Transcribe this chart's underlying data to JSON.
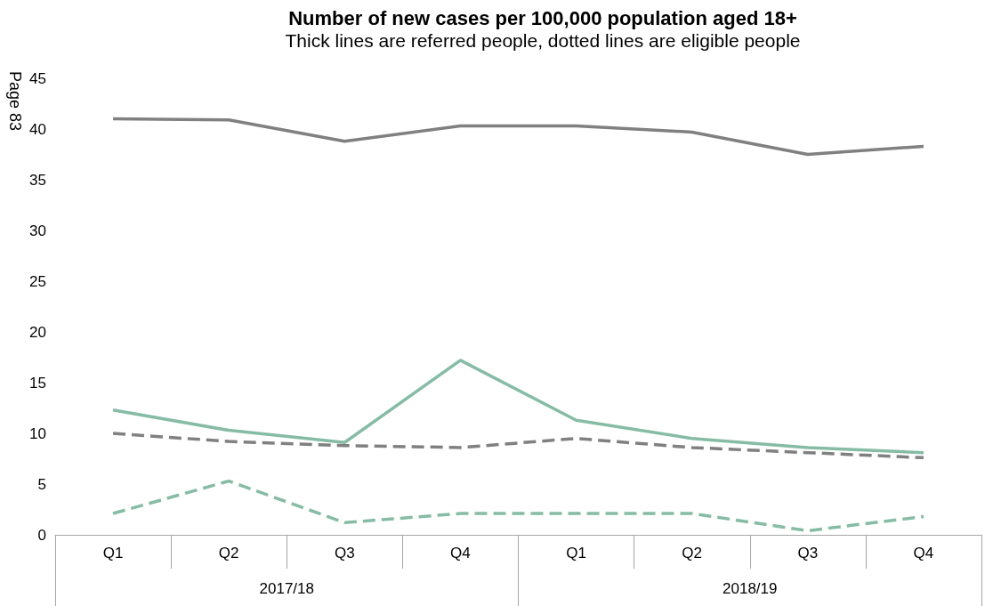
{
  "chart_data": {
    "type": "line",
    "title": "Number of new cases per 100,000 population aged 18+",
    "subtitle": "Thick lines are referred people, dotted lines are eligible people",
    "categories": [
      "Q1",
      "Q2",
      "Q3",
      "Q4",
      "Q1",
      "Q2",
      "Q3",
      "Q4"
    ],
    "series": [
      {
        "color": "#808080",
        "line_style": "solid",
        "values": [
          41.0,
          40.9,
          38.8,
          40.3,
          40.3,
          39.7,
          37.5,
          38.3
        ]
      },
      {
        "color": "#86bca5",
        "line_style": "solid",
        "values": [
          12.3,
          10.3,
          9.1,
          17.2,
          11.3,
          9.5,
          8.6,
          8.1
        ]
      },
      {
        "color": "#808080",
        "line_style": "dashed",
        "values": [
          10.0,
          9.2,
          8.8,
          8.6,
          9.5,
          8.6,
          8.1,
          7.6
        ]
      },
      {
        "color": "#86bca5",
        "line_style": "dashed",
        "values": [
          2.1,
          5.3,
          1.2,
          2.1,
          2.1,
          2.1,
          0.4,
          1.8
        ]
      }
    ],
    "annotations": [
      "2017/18",
      "2018/19",
      "Page 83"
    ],
    "ylim": [
      0,
      45
    ],
    "yticks": [
      0,
      5,
      10,
      15,
      20,
      25,
      30,
      35,
      40,
      45
    ],
    "grid": false,
    "marker": "none"
  }
}
